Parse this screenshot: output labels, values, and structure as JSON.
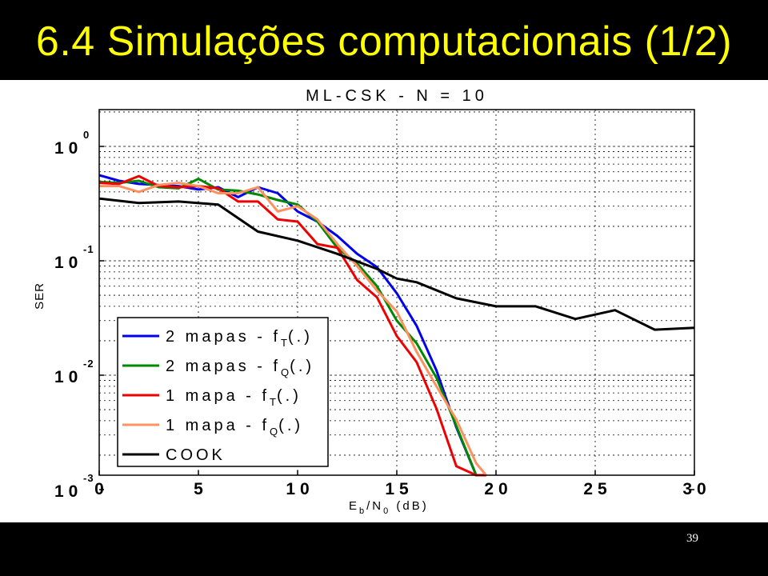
{
  "slide": {
    "title": "6.4 Simulações computacionais (1/2)",
    "page_number": "39"
  },
  "colors": {
    "background": "#000000",
    "title": "#ffff00",
    "plot_background": "#ffffff"
  },
  "chart_data": {
    "type": "line",
    "title": "ML-CSK - N = 10",
    "ylabel": "SER",
    "xlabel_parts": [
      "E",
      "b",
      "/N",
      "0",
      " (dB)"
    ],
    "x_scale": "linear",
    "y_scale": "log",
    "xlim": [
      0,
      30
    ],
    "ylim": [
      0.0007,
      1.3
    ],
    "grid": true,
    "grid_style": "dotted",
    "legend_position": "bottom-left",
    "x_ticks": [
      "0",
      "5",
      "10",
      "15",
      "20",
      "25",
      "30"
    ],
    "y_ticks": [
      {
        "base": "10",
        "exp": "0"
      },
      {
        "base": "10",
        "exp": "-1"
      },
      {
        "base": "10",
        "exp": "-2"
      },
      {
        "base": "10",
        "exp": "-3"
      }
    ],
    "series": [
      {
        "legend_parts": [
          "2 mapas - f",
          "T",
          "(.)"
        ],
        "color": "#0000ee",
        "x": [
          0,
          1,
          2,
          3,
          4,
          5,
          6,
          7,
          8,
          9,
          10,
          11,
          12,
          13,
          14,
          15,
          16,
          17,
          18,
          19,
          19.5
        ],
        "y": [
          0.56,
          0.5,
          0.47,
          0.46,
          0.45,
          0.42,
          0.44,
          0.36,
          0.44,
          0.39,
          0.27,
          0.22,
          0.165,
          0.115,
          0.088,
          0.052,
          0.027,
          0.011,
          0.0035,
          0.0011,
          0.0007
        ]
      },
      {
        "legend_parts": [
          "2 mapas - f",
          "Q",
          "(.)"
        ],
        "color": "#008800",
        "x": [
          0,
          1,
          2,
          3,
          4,
          5,
          6,
          7,
          8,
          9,
          10,
          11,
          12,
          13,
          14,
          15,
          16,
          17,
          18,
          19,
          19.5
        ],
        "y": [
          0.49,
          0.48,
          0.5,
          0.44,
          0.43,
          0.52,
          0.42,
          0.41,
          0.38,
          0.34,
          0.31,
          0.22,
          0.13,
          0.095,
          0.06,
          0.03,
          0.019,
          0.0095,
          0.0036,
          0.0013,
          0.0007
        ]
      },
      {
        "legend_parts": [
          "1 mapa - f",
          "T",
          "(.)"
        ],
        "color": "#ee0000",
        "x": [
          0,
          1,
          2,
          3,
          4,
          5,
          6,
          7,
          8,
          9,
          10,
          11,
          12,
          13,
          14,
          15,
          16,
          17,
          18,
          19,
          19.5
        ],
        "y": [
          0.48,
          0.47,
          0.55,
          0.45,
          0.44,
          0.45,
          0.43,
          0.33,
          0.33,
          0.23,
          0.22,
          0.14,
          0.13,
          0.068,
          0.048,
          0.022,
          0.013,
          0.0051,
          0.0016,
          0.0011,
          0.0007
        ]
      },
      {
        "legend_parts": [
          "1 mapa - f",
          "Q",
          "(.)"
        ],
        "color": "#ff9060",
        "x": [
          0,
          1,
          2,
          3,
          4,
          5,
          6,
          7,
          8,
          9,
          10,
          11,
          12,
          13,
          14,
          15,
          16,
          17,
          18,
          19,
          19.5
        ],
        "y": [
          0.45,
          0.45,
          0.4,
          0.46,
          0.48,
          0.45,
          0.39,
          0.39,
          0.44,
          0.27,
          0.3,
          0.23,
          0.14,
          0.09,
          0.055,
          0.036,
          0.016,
          0.008,
          0.0041,
          0.0017,
          0.0009
        ]
      },
      {
        "legend_parts": [
          "COOK",
          "",
          ""
        ],
        "color": "#000000",
        "x": [
          0,
          2,
          4,
          6,
          8,
          10,
          12,
          14,
          15,
          16,
          18,
          20,
          22,
          24,
          26,
          28,
          30
        ],
        "y": [
          0.35,
          0.32,
          0.33,
          0.31,
          0.18,
          0.15,
          0.115,
          0.085,
          0.07,
          0.065,
          0.047,
          0.04,
          0.04,
          0.031,
          0.037,
          0.025,
          0.026
        ]
      }
    ]
  }
}
